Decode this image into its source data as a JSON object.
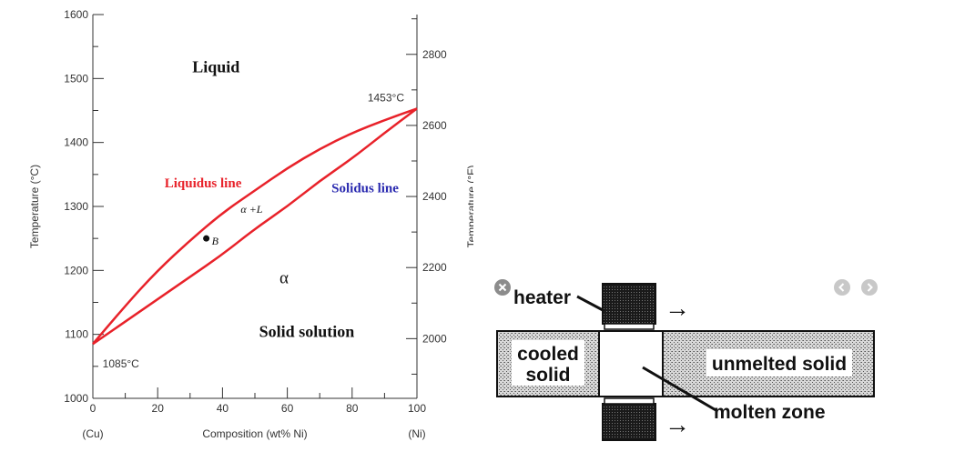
{
  "chart_data": {
    "type": "line",
    "xlabel": "Composition (wt% Ni)",
    "ylabel": "Temperature (°C)",
    "ylabel_right": "Temperature (°F)",
    "x_min_label": "(Cu)",
    "x_max_label": "(Ni)",
    "xlim": [
      0,
      100
    ],
    "ylim": [
      1000,
      1600
    ],
    "x_ticks": [
      0,
      20,
      40,
      60,
      80,
      100
    ],
    "y_ticks": [
      1000,
      1100,
      1200,
      1300,
      1400,
      1500,
      1600
    ],
    "y_ticks_right": [
      2000,
      2200,
      2400,
      2600,
      2800
    ],
    "series": [
      {
        "name": "Liquidus line",
        "color": "#e8222a",
        "x": [
          0,
          10,
          20,
          30,
          40,
          50,
          60,
          70,
          80,
          90,
          100
        ],
        "y": [
          1085,
          1145,
          1200,
          1247,
          1290,
          1325,
          1360,
          1390,
          1415,
          1435,
          1453
        ]
      },
      {
        "name": "Solidus line",
        "color": "#e8222a",
        "x": [
          0,
          10,
          20,
          30,
          40,
          50,
          60,
          70,
          80,
          90,
          100
        ],
        "y": [
          1085,
          1120,
          1155,
          1190,
          1225,
          1265,
          1300,
          1340,
          1375,
          1415,
          1453
        ]
      }
    ],
    "annotations": {
      "liquid": "Liquid",
      "liquidus": "Liquidus line",
      "solidus": "Solidus line",
      "two_phase": "α +L",
      "alpha": "α",
      "solid_solution": "Solid solution",
      "point_b": "B",
      "high_temp": "1453°C",
      "low_temp": "1085°C"
    },
    "point_b": {
      "x": 35,
      "y": 1250
    },
    "colors": {
      "liquidus_label": "#e8222a",
      "solidus_label": "#2b2bb0",
      "curve": "#e8222a"
    }
  },
  "zone_refining": {
    "heater_label": "heater",
    "cooled_label_line1": "cooled",
    "cooled_label_line2": "solid",
    "unmelted_label": "unmelted solid",
    "molten_label": "molten zone",
    "arrow_glyph": "→"
  },
  "viewer": {
    "close_icon": "close-icon",
    "prev_icon": "chevron-left-icon",
    "next_icon": "chevron-right-icon"
  }
}
